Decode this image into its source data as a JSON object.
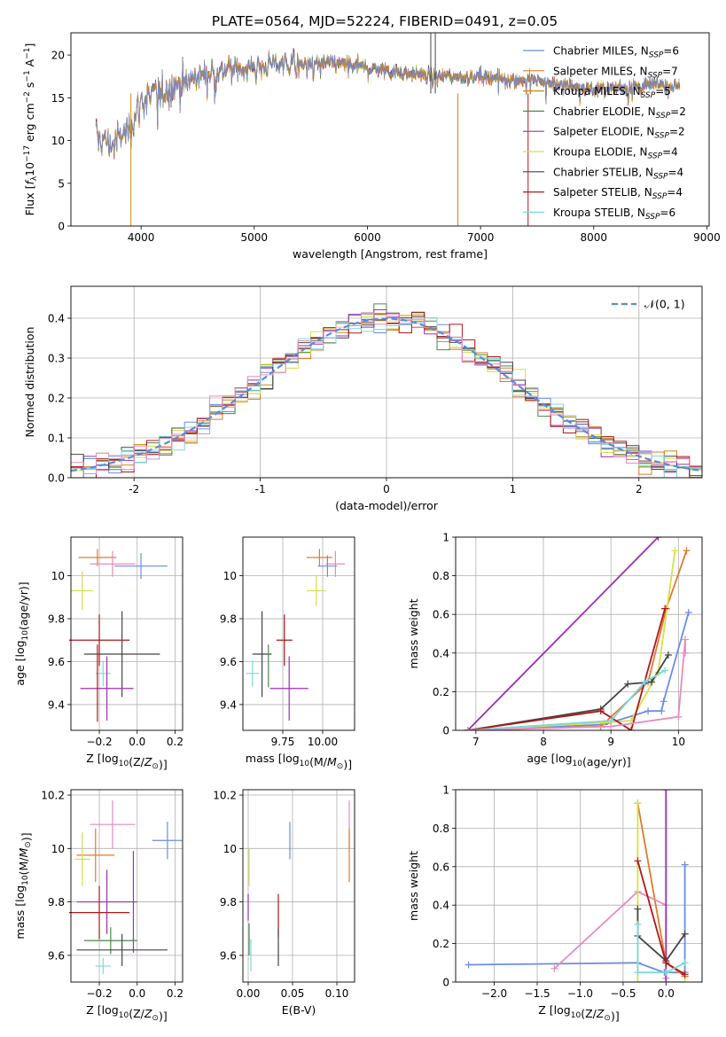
{
  "title": "PLATE=0564, MJD=52224, FIBERID=0491, z=0.05",
  "colors": {
    "Chabrier MILES": "#6a8ee0",
    "Salpeter MILES": "#e07a2e",
    "Kroupa MILES": "#c88a0e",
    "Chabrier ELODIE": "#4a8a4a",
    "Salpeter ELODIE": "#9b30b0",
    "Kroupa ELODIE": "#d6e04a",
    "Chabrier STELIB": "#444444",
    "Salpeter STELIB": "#b01818",
    "Kroupa STELIB": "#7ad8e0",
    "pink": "#e88ac0",
    "normal": "#5b8ae0",
    "grid": "#b0b0b0"
  },
  "chart_data": [
    {
      "id": "spectrum",
      "type": "line",
      "xlabel": "wavelength [Angstrom, rest frame]",
      "ylabel": "Flux [fλ10⁻¹⁷ erg cm⁻² s⁻¹ A⁻¹]",
      "xlim": [
        3380,
        9020
      ],
      "ylim": [
        0,
        22.6
      ],
      "xticks": [
        4000,
        5000,
        6000,
        7000,
        8000,
        9000
      ],
      "yticks": [
        0,
        5,
        10,
        15,
        20
      ],
      "grid": false,
      "legend_position": "top-right",
      "legend": [
        {
          "label": "Chabrier MILES, N",
          "sub": "SSP",
          "tail": "=6",
          "color": "Chabrier MILES"
        },
        {
          "label": "Salpeter MILES, N",
          "sub": "SSP",
          "tail": "=7",
          "color": "Salpeter MILES"
        },
        {
          "label": "Kroupa MILES, N",
          "sub": "SSP",
          "tail": "=5",
          "color": "Kroupa MILES"
        },
        {
          "label": "Chabrier ELODIE, N",
          "sub": "SSP",
          "tail": "=2",
          "color": "Chabrier ELODIE"
        },
        {
          "label": "Salpeter ELODIE, N",
          "sub": "SSP",
          "tail": "=2",
          "color": "Salpeter ELODIE"
        },
        {
          "label": "Kroupa ELODIE, N",
          "sub": "SSP",
          "tail": "=4",
          "color": "Kroupa ELODIE"
        },
        {
          "label": "Chabrier STELIB, N",
          "sub": "SSP",
          "tail": "=4",
          "color": "Chabrier STELIB"
        },
        {
          "label": "Salpeter STELIB, N",
          "sub": "SSP",
          "tail": "=4",
          "color": "Salpeter STELIB"
        },
        {
          "label": "Kroupa STELIB, N",
          "sub": "SSP",
          "tail": "=6",
          "color": "Kroupa STELIB"
        }
      ],
      "continuum": [
        [
          3600,
          10.5
        ],
        [
          3750,
          9.5
        ],
        [
          3900,
          11.5
        ],
        [
          4000,
          14.5
        ],
        [
          4200,
          16.0
        ],
        [
          4400,
          17.0
        ],
        [
          4600,
          18.0
        ],
        [
          4800,
          18.5
        ],
        [
          5000,
          18.5
        ],
        [
          5200,
          19.0
        ],
        [
          5500,
          19.0
        ],
        [
          5800,
          19.0
        ],
        [
          6000,
          18.5
        ],
        [
          6300,
          18.0
        ],
        [
          6600,
          17.5
        ],
        [
          7000,
          17.5
        ],
        [
          7500,
          17.0
        ],
        [
          8000,
          16.0
        ],
        [
          8500,
          16.5
        ],
        [
          8750,
          16.5
        ]
      ],
      "features": [
        {
          "x": 3910,
          "to": 0,
          "color": "Kroupa MILES"
        },
        {
          "x": 6800,
          "to": 0,
          "color": "Kroupa MILES"
        },
        {
          "x": 7420,
          "to": 0,
          "color": "Salpeter STELIB"
        },
        {
          "x": 6560,
          "to": 22.6,
          "color": "Chabrier STELIB"
        },
        {
          "x": 6600,
          "to": 22.6,
          "color": "Chabrier STELIB"
        }
      ]
    },
    {
      "id": "residuals",
      "type": "histogram",
      "xlabel": "(data-model)/error",
      "ylabel": "Normed distribution",
      "xlim": [
        -2.5,
        2.5
      ],
      "ylim": [
        0,
        0.48
      ],
      "xticks": [
        -2,
        -1,
        0,
        1,
        2
      ],
      "yticks": [
        0.0,
        0.1,
        0.2,
        0.3,
        0.4
      ],
      "grid": true,
      "legend_position": "top-right",
      "legend": [
        {
          "label": "𝒩(0, 1)",
          "color": "normal",
          "style": "dashed"
        }
      ],
      "bin_width": 0.1,
      "bins_from": -2.5,
      "bins_to": 2.5
    },
    {
      "id": "age-vs-Z",
      "type": "errorbar",
      "xlabel": "Z [log10(Z/Z⊙)]",
      "ylabel": "age  [log10(age/yr)]",
      "xlim": [
        -0.35,
        0.24
      ],
      "ylim": [
        9.28,
        10.18
      ],
      "xticks": [
        -0.2,
        0.0,
        0.2
      ],
      "xticklabels": [
        "−0.2",
        "0.0",
        "0.2"
      ],
      "yticks": [
        9.4,
        9.6,
        9.8,
        10.0
      ],
      "points": [
        {
          "x": -0.21,
          "y": 10.085,
          "ex": 0.1,
          "ey": 0.04,
          "color": "Salpeter MILES"
        },
        {
          "x": -0.13,
          "y": 10.055,
          "ex": 0.12,
          "ey": 0.06,
          "color": "pink"
        },
        {
          "x": 0.02,
          "y": 10.045,
          "ex": 0.14,
          "ey": 0.06,
          "color": "Chabrier MILES"
        },
        {
          "x": -0.29,
          "y": 9.93,
          "ex": 0.06,
          "ey": 0.09,
          "color": "Kroupa ELODIE"
        },
        {
          "x": -0.2,
          "y": 9.7,
          "ex": 0.16,
          "ey": 0.12,
          "color": "Salpeter STELIB"
        },
        {
          "x": -0.08,
          "y": 9.635,
          "ex": 0.2,
          "ey": 0.2,
          "color": "Chabrier STELIB"
        },
        {
          "x": -0.18,
          "y": 9.545,
          "ex": 0.04,
          "ey": 0.06,
          "color": "Kroupa STELIB"
        },
        {
          "x": -0.16,
          "y": 9.475,
          "ex": 0.14,
          "ey": 0.15,
          "color": "Salpeter ELODIE"
        },
        {
          "x": -0.21,
          "y": 9.5,
          "ex": 0.0,
          "ey": 0.18,
          "color": "Salpeter STELIB"
        }
      ]
    },
    {
      "id": "age-vs-mass",
      "type": "errorbar",
      "xlabel": "mass [log10(M/M⊙)]",
      "ylabel": "",
      "xlim": [
        9.5,
        10.2
      ],
      "ylim": [
        9.28,
        10.18
      ],
      "xticks": [
        9.75,
        10.0
      ],
      "xticklabels": [
        "9.75",
        "10.00"
      ],
      "yticks": [
        9.4,
        9.6,
        9.8,
        10.0
      ],
      "points": [
        {
          "x": 9.98,
          "y": 10.085,
          "ex": 0.08,
          "ey": 0.04,
          "color": "Salpeter MILES"
        },
        {
          "x": 10.08,
          "y": 10.055,
          "ex": 0.06,
          "ey": 0.06,
          "color": "pink"
        },
        {
          "x": 10.03,
          "y": 10.045,
          "ex": 0.06,
          "ey": 0.05,
          "color": "Chabrier MILES"
        },
        {
          "x": 9.96,
          "y": 9.93,
          "ex": 0.06,
          "ey": 0.07,
          "color": "Kroupa ELODIE"
        },
        {
          "x": 9.76,
          "y": 9.7,
          "ex": 0.05,
          "ey": 0.12,
          "color": "Salpeter STELIB"
        },
        {
          "x": 9.62,
          "y": 9.635,
          "ex": 0.06,
          "ey": 0.2,
          "color": "Chabrier STELIB"
        },
        {
          "x": 9.56,
          "y": 9.545,
          "ex": 0.04,
          "ey": 0.06,
          "color": "Kroupa STELIB"
        },
        {
          "x": 9.79,
          "y": 9.475,
          "ex": 0.12,
          "ey": 0.15,
          "color": "Salpeter ELODIE"
        },
        {
          "x": 9.66,
          "y": 9.58,
          "ex": 0.0,
          "ey": 0.1,
          "color": "Chabrier ELODIE"
        }
      ]
    },
    {
      "id": "weight-vs-age",
      "type": "line",
      "xlabel": "age  [log10(age/yr)]",
      "ylabel": "mass weight",
      "xlim": [
        6.7,
        10.35
      ],
      "ylim": [
        0,
        1
      ],
      "xticks": [
        7,
        8,
        9,
        10
      ],
      "yticks": [
        0.0,
        0.2,
        0.4,
        0.6,
        0.8,
        1.0
      ],
      "series": [
        {
          "color": "Chabrier MILES",
          "points": [
            [
              6.88,
              0.0
            ],
            [
              8.9,
              0.03
            ],
            [
              9.55,
              0.1
            ],
            [
              9.75,
              0.1
            ],
            [
              9.78,
              0.15
            ],
            [
              10.15,
              0.61
            ]
          ]
        },
        {
          "color": "Salpeter MILES",
          "points": [
            [
              6.88,
              0.0
            ],
            [
              8.85,
              0.02
            ],
            [
              9.55,
              0.25
            ],
            [
              9.82,
              0.63
            ],
            [
              10.12,
              0.93
            ]
          ]
        },
        {
          "color": "Kroupa ELODIE",
          "points": [
            [
              6.88,
              0.0
            ],
            [
              8.9,
              0.04
            ],
            [
              9.3,
              0.05
            ],
            [
              9.7,
              0.3
            ],
            [
              9.95,
              0.93
            ]
          ]
        },
        {
          "color": "Salpeter ELODIE",
          "points": [
            [
              6.88,
              0.0
            ],
            [
              9.7,
              1.0
            ]
          ]
        },
        {
          "color": "Chabrier STELIB",
          "points": [
            [
              6.88,
              0.0
            ],
            [
              8.85,
              0.11
            ],
            [
              9.25,
              0.24
            ],
            [
              9.6,
              0.25
            ],
            [
              9.85,
              0.39
            ]
          ]
        },
        {
          "color": "Salpeter STELIB",
          "points": [
            [
              6.88,
              0.0
            ],
            [
              8.85,
              0.1
            ],
            [
              9.3,
              0.0
            ],
            [
              9.8,
              0.63
            ]
          ]
        },
        {
          "color": "Kroupa STELIB",
          "points": [
            [
              6.88,
              0.0
            ],
            [
              9.0,
              0.05
            ],
            [
              9.5,
              0.25
            ],
            [
              9.8,
              0.31
            ]
          ]
        },
        {
          "color": "pink",
          "points": [
            [
              6.88,
              0.0
            ],
            [
              9.0,
              0.02
            ],
            [
              10.0,
              0.07
            ],
            [
              10.1,
              0.47
            ],
            [
              10.1,
              0.4
            ]
          ]
        }
      ]
    },
    {
      "id": "mass-vs-Z",
      "type": "errorbar",
      "xlabel": "Z [log10(Z/Z⊙)]",
      "ylabel": "mass [log10(M/M⊙)]",
      "xlim": [
        -0.35,
        0.24
      ],
      "ylim": [
        9.5,
        10.22
      ],
      "xticks": [
        -0.2,
        0.0,
        0.2
      ],
      "xticklabels": [
        "−0.2",
        "0.0",
        "0.2"
      ],
      "yticks": [
        9.6,
        9.8,
        10.0,
        10.2
      ],
      "points": [
        {
          "x": -0.13,
          "y": 10.09,
          "ex": 0.12,
          "ey": 0.09,
          "color": "pink"
        },
        {
          "x": 0.16,
          "y": 10.03,
          "ex": 0.08,
          "ey": 0.07,
          "color": "Chabrier MILES"
        },
        {
          "x": -0.22,
          "y": 9.975,
          "ex": 0.1,
          "ey": 0.1,
          "color": "Salpeter MILES"
        },
        {
          "x": -0.29,
          "y": 9.96,
          "ex": 0.04,
          "ey": 0.1,
          "color": "Kroupa ELODIE"
        },
        {
          "x": -0.16,
          "y": 9.8,
          "ex": 0.16,
          "ey": 0.12,
          "color": "Salpeter ELODIE"
        },
        {
          "x": -0.02,
          "y": 9.8,
          "ex": 0.0,
          "ey": 0.19,
          "color": "Salpeter ELODIE"
        },
        {
          "x": -0.2,
          "y": 9.76,
          "ex": 0.16,
          "ey": 0.1,
          "color": "Salpeter STELIB"
        },
        {
          "x": -0.14,
          "y": 9.655,
          "ex": 0.14,
          "ey": 0.05,
          "color": "Chabrier ELODIE"
        },
        {
          "x": -0.08,
          "y": 9.62,
          "ex": 0.24,
          "ey": 0.06,
          "color": "Chabrier STELIB"
        },
        {
          "x": -0.18,
          "y": 9.56,
          "ex": 0.04,
          "ey": 0.03,
          "color": "Kroupa STELIB"
        }
      ]
    },
    {
      "id": "mass-vs-EBV",
      "type": "errorbar",
      "xlabel": "E(B-V)",
      "ylabel": "",
      "xlim": [
        -0.006,
        0.12
      ],
      "ylim": [
        9.5,
        10.22
      ],
      "xticks": [
        0.0,
        0.05,
        0.1
      ],
      "xticklabels": [
        "0.00",
        "0.05",
        "0.10"
      ],
      "yticks": [
        9.6,
        9.8,
        10.0,
        10.2
      ],
      "points": [
        {
          "x": 0.114,
          "y": 10.09,
          "ex": 0.0,
          "ey": 0.09,
          "color": "pink"
        },
        {
          "x": 0.047,
          "y": 10.03,
          "ex": 0.0,
          "ey": 0.07,
          "color": "Chabrier MILES"
        },
        {
          "x": 0.114,
          "y": 9.975,
          "ex": 0.0,
          "ey": 0.1,
          "color": "Salpeter MILES"
        },
        {
          "x": 0.001,
          "y": 9.93,
          "ex": 0.0,
          "ey": 0.07,
          "color": "Kroupa ELODIE"
        },
        {
          "x": 0.0,
          "y": 9.78,
          "ex": 0.0,
          "ey": 0.05,
          "color": "Salpeter ELODIE"
        },
        {
          "x": 0.034,
          "y": 9.75,
          "ex": 0.0,
          "ey": 0.08,
          "color": "Salpeter STELIB"
        },
        {
          "x": 0.034,
          "y": 9.63,
          "ex": 0.0,
          "ey": 0.07,
          "color": "Chabrier STELIB"
        },
        {
          "x": 0.003,
          "y": 9.6,
          "ex": 0.0,
          "ey": 0.06,
          "color": "Kroupa STELIB"
        },
        {
          "x": 0.001,
          "y": 9.66,
          "ex": 0.0,
          "ey": 0.06,
          "color": "Chabrier ELODIE"
        }
      ]
    },
    {
      "id": "weight-vs-Z",
      "type": "line",
      "xlabel": "Z [log10(Z/Z⊙)]",
      "ylabel": "mass weight",
      "xlim": [
        -2.45,
        0.42
      ],
      "ylim": [
        0,
        1
      ],
      "xticks": [
        -2.0,
        -1.5,
        -1.0,
        -0.5,
        0.0
      ],
      "xticklabels": [
        "−2.0",
        "−1.5",
        "−1.0",
        "−0.5",
        "0.0"
      ],
      "yticks": [
        0.0,
        0.2,
        0.4,
        0.6,
        0.8,
        1.0
      ],
      "series": [
        {
          "color": "Chabrier MILES",
          "points": [
            [
              -2.3,
              0.09
            ],
            [
              -0.33,
              0.1
            ],
            [
              -0.02,
              0.05
            ],
            [
              0.22,
              0.05
            ],
            [
              0.22,
              0.61
            ]
          ]
        },
        {
          "color": "Salpeter MILES",
          "points": [
            [
              -0.33,
              0.93
            ],
            [
              0.0,
              0.1
            ],
            [
              0.22,
              0.03
            ]
          ]
        },
        {
          "color": "pink",
          "points": [
            [
              -1.3,
              0.07
            ],
            [
              -0.33,
              0.47
            ],
            [
              0.0,
              0.4
            ],
            [
              0.0,
              0.02
            ]
          ]
        },
        {
          "color": "Salpeter ELODIE",
          "points": [
            [
              0.0,
              1.0
            ],
            [
              0.0,
              0.0
            ]
          ]
        },
        {
          "color": "Kroupa ELODIE",
          "points": [
            [
              -0.33,
              0.93
            ],
            [
              -0.33,
              0.0
            ],
            [
              0.22,
              0.0
            ]
          ]
        },
        {
          "color": "Chabrier STELIB",
          "points": [
            [
              -0.33,
              0.38
            ],
            [
              -0.33,
              0.24
            ],
            [
              0.0,
              0.11
            ],
            [
              0.22,
              0.25
            ]
          ]
        },
        {
          "color": "Salpeter STELIB",
          "points": [
            [
              -0.33,
              0.63
            ],
            [
              0.0,
              0.1
            ],
            [
              0.22,
              0.04
            ]
          ]
        },
        {
          "color": "Kroupa STELIB",
          "points": [
            [
              -0.33,
              0.3
            ],
            [
              -0.33,
              0.05
            ],
            [
              0.0,
              0.05
            ],
            [
              0.22,
              0.1
            ]
          ]
        }
      ]
    }
  ]
}
